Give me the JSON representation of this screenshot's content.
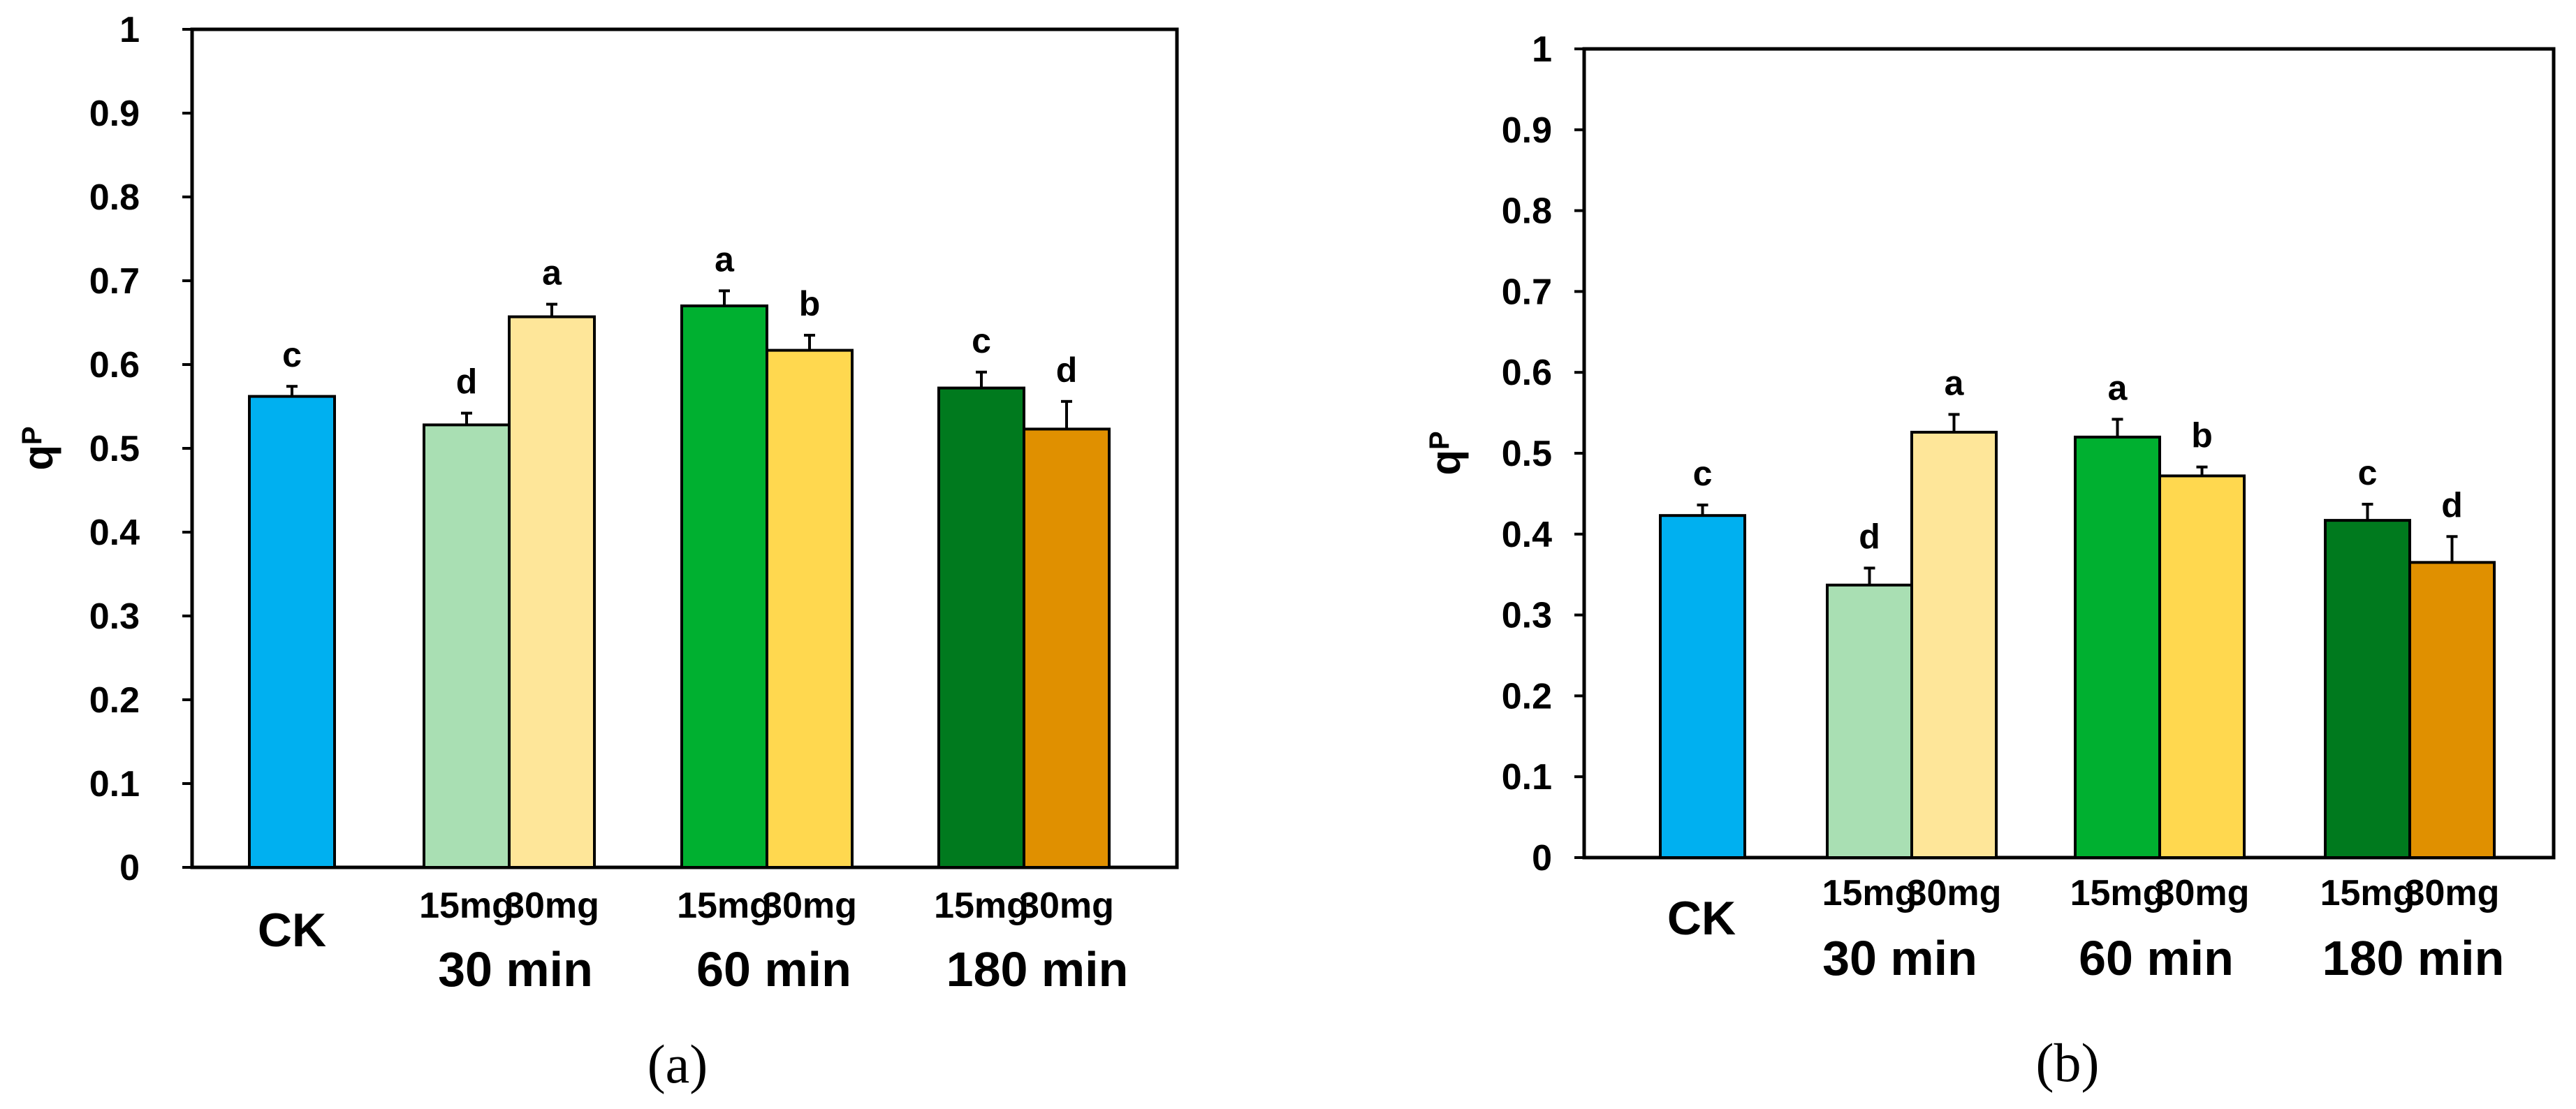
{
  "chart_data": [
    {
      "type": "bar",
      "panel_label": "(a)",
      "title": "",
      "ylabel": "qP",
      "ylabel_main": "q",
      "ylabel_sub": "P",
      "xlabel": "",
      "ylim": [
        0,
        1
      ],
      "yticks": [
        "0",
        "0.1",
        "0.2",
        "0.3",
        "0.4",
        "0.5",
        "0.6",
        "0.7",
        "0.8",
        "0.9",
        "1"
      ],
      "grid": false,
      "legend": "none",
      "bars": [
        {
          "category": "CK",
          "dose": "",
          "group": "",
          "value": 0.562,
          "error": 0.012,
          "letter": "c",
          "color": "#00B0F0"
        },
        {
          "category": "30 min 15mg",
          "dose": "15mg",
          "group": "30 min",
          "value": 0.528,
          "error": 0.014,
          "letter": "d",
          "color": "#A9DFB3"
        },
        {
          "category": "30 min 30mg",
          "dose": "30mg",
          "group": "30 min",
          "value": 0.657,
          "error": 0.015,
          "letter": "a",
          "color": "#FEE699"
        },
        {
          "category": "60 min 15mg",
          "dose": "15mg",
          "group": "60 min",
          "value": 0.67,
          "error": 0.018,
          "letter": "a",
          "color": "#00B030"
        },
        {
          "category": "60 min 30mg",
          "dose": "30mg",
          "group": "60 min",
          "value": 0.617,
          "error": 0.018,
          "letter": "b",
          "color": "#FFD84F"
        },
        {
          "category": "180 min 15mg",
          "dose": "15mg",
          "group": "180 min",
          "value": 0.572,
          "error": 0.019,
          "letter": "c",
          "color": "#007A1E"
        },
        {
          "category": "180 min 30mg",
          "dose": "30mg",
          "group": "180 min",
          "value": 0.523,
          "error": 0.033,
          "letter": "d",
          "color": "#E09000"
        }
      ],
      "groups": [
        "30 min",
        "60 min",
        "180 min"
      ],
      "ck_label": "CK"
    },
    {
      "type": "bar",
      "panel_label": "(b)",
      "title": "",
      "ylabel": "qP",
      "ylabel_main": "q",
      "ylabel_sub": "P",
      "xlabel": "",
      "ylim": [
        0,
        1
      ],
      "yticks": [
        "0",
        "0.1",
        "0.2",
        "0.3",
        "0.4",
        "0.5",
        "0.6",
        "0.7",
        "0.8",
        "0.9",
        "1"
      ],
      "grid": false,
      "legend": "none",
      "bars": [
        {
          "category": "CK",
          "dose": "",
          "group": "",
          "value": 0.423,
          "error": 0.013,
          "letter": "c",
          "color": "#00B0F0"
        },
        {
          "category": "30 min 15mg",
          "dose": "15mg",
          "group": "30 min",
          "value": 0.337,
          "error": 0.021,
          "letter": "d",
          "color": "#A9DFB3"
        },
        {
          "category": "30 min 30mg",
          "dose": "30mg",
          "group": "30 min",
          "value": 0.526,
          "error": 0.022,
          "letter": "a",
          "color": "#FEE699"
        },
        {
          "category": "60 min 15mg",
          "dose": "15mg",
          "group": "60 min",
          "value": 0.52,
          "error": 0.022,
          "letter": "a",
          "color": "#00B030"
        },
        {
          "category": "60 min 30mg",
          "dose": "30mg",
          "group": "60 min",
          "value": 0.472,
          "error": 0.011,
          "letter": "b",
          "color": "#FFD84F"
        },
        {
          "category": "180 min 15mg",
          "dose": "15mg",
          "group": "180 min",
          "value": 0.417,
          "error": 0.02,
          "letter": "c",
          "color": "#007A1E"
        },
        {
          "category": "180 min 30mg",
          "dose": "30mg",
          "group": "180 min",
          "value": 0.365,
          "error": 0.032,
          "letter": "d",
          "color": "#E09000"
        }
      ],
      "groups": [
        "30 min",
        "60 min",
        "180 min"
      ],
      "ck_label": "CK"
    }
  ]
}
